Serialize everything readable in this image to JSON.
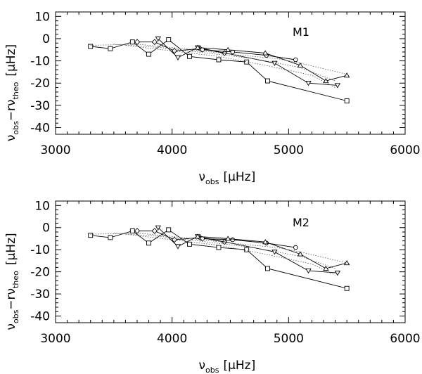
{
  "chart_data": [
    {
      "type": "line",
      "panel_label": "M1",
      "xlabel": "ν_obs [μHz]",
      "ylabel": "ν_obs − r ν_theo [μHz]",
      "xlim": [
        3000,
        6000
      ],
      "ylim": [
        -43,
        12
      ],
      "xticks": [
        3000,
        4000,
        5000,
        6000
      ],
      "yticks": [
        10,
        0,
        -10,
        -20,
        -30,
        -40
      ],
      "series": [
        {
          "name": "squares",
          "marker": "square",
          "style": "solid",
          "x": [
            3300,
            3470,
            3660,
            3800,
            3970,
            4150,
            4400,
            4640,
            4820,
            5500
          ],
          "y": [
            -3.5,
            -4.5,
            -1.5,
            -7,
            -0.5,
            -8,
            -9.5,
            -10.5,
            -19,
            -28
          ]
        },
        {
          "name": "diamonds",
          "marker": "diamond",
          "style": "solid",
          "x": [
            3700,
            3850,
            4020,
            4240,
            4450
          ],
          "y": [
            -1.5,
            -1.5,
            -5.5,
            -4.5,
            -6.5
          ]
        },
        {
          "name": "down-triangles",
          "marker": "triangle-down",
          "style": "solid",
          "x": [
            3880,
            4050,
            4220,
            4880,
            5170,
            5420
          ],
          "y": [
            0,
            -8.5,
            -4,
            -11,
            -20,
            -21
          ]
        },
        {
          "name": "circles",
          "marker": "circle",
          "style": "solid",
          "x": [
            4260,
            4520,
            4810,
            5060
          ],
          "y": [
            -5,
            -6,
            -7.5,
            -9.5
          ]
        },
        {
          "name": "up-triangles",
          "marker": "triangle-up",
          "style": "solid",
          "x": [
            4220,
            4480,
            4800,
            5100,
            5320,
            5500
          ],
          "y": [
            -4,
            -5,
            -6.5,
            -12,
            -19,
            -16.5
          ]
        },
        {
          "name": "model-dotted-1",
          "marker": "none",
          "style": "dotted",
          "x": [
            3300,
            3700,
            4100,
            4500,
            4900,
            5100,
            5500
          ],
          "y": [
            -3,
            -2.5,
            -4.5,
            -7,
            -9,
            -11,
            -16
          ]
        },
        {
          "name": "model-dotted-2",
          "marker": "none",
          "style": "dotted",
          "x": [
            3500,
            3900,
            4300,
            4700,
            5100,
            5400
          ],
          "y": [
            -2.5,
            -4,
            -6.5,
            -9,
            -13,
            -19
          ]
        },
        {
          "name": "model-dotted-3",
          "marker": "none",
          "style": "dotted",
          "x": [
            3600,
            4000,
            4400,
            4800,
            5200,
            5400
          ],
          "y": [
            -3,
            -5.5,
            -8,
            -12,
            -16.5,
            -22
          ]
        }
      ]
    },
    {
      "type": "line",
      "panel_label": "M2",
      "xlabel": "ν_obs [μHz]",
      "ylabel": "ν_obs − r ν_theo [μHz]",
      "xlim": [
        3000,
        6000
      ],
      "ylim": [
        -43,
        12
      ],
      "xticks": [
        3000,
        4000,
        5000,
        6000
      ],
      "yticks": [
        10,
        0,
        -10,
        -20,
        -30,
        -40
      ],
      "series": [
        {
          "name": "squares",
          "marker": "square",
          "style": "solid",
          "x": [
            3300,
            3470,
            3660,
            3800,
            3970,
            4150,
            4400,
            4640,
            4820,
            5500
          ],
          "y": [
            -3.5,
            -4.5,
            -1.5,
            -7,
            -1,
            -7.5,
            -9,
            -10,
            -18.5,
            -27.5
          ]
        },
        {
          "name": "diamonds",
          "marker": "diamond",
          "style": "solid",
          "x": [
            3700,
            3850,
            4020,
            4240,
            4450
          ],
          "y": [
            -1.5,
            -1.5,
            -5.5,
            -4.5,
            -6.5
          ]
        },
        {
          "name": "down-triangles",
          "marker": "triangle-down",
          "style": "solid",
          "x": [
            3880,
            4050,
            4220,
            4880,
            5170,
            5420
          ],
          "y": [
            0,
            -8.5,
            -4,
            -11,
            -19.5,
            -20.5
          ]
        },
        {
          "name": "circles",
          "marker": "circle",
          "style": "solid",
          "x": [
            4260,
            4520,
            4810,
            5060
          ],
          "y": [
            -5,
            -5.5,
            -7,
            -9
          ]
        },
        {
          "name": "up-triangles",
          "marker": "triangle-up",
          "style": "solid",
          "x": [
            4220,
            4480,
            4800,
            5100,
            5320,
            5500
          ],
          "y": [
            -4,
            -5,
            -6.5,
            -12,
            -18.5,
            -16
          ]
        },
        {
          "name": "model-dotted-1",
          "marker": "none",
          "style": "dotted",
          "x": [
            3300,
            3700,
            4100,
            4500,
            4900,
            5100,
            5500
          ],
          "y": [
            -3,
            -2.5,
            -4.5,
            -7,
            -9,
            -11,
            -16
          ]
        },
        {
          "name": "model-dotted-2",
          "marker": "none",
          "style": "dotted",
          "x": [
            3500,
            3900,
            4300,
            4700,
            5100,
            5400
          ],
          "y": [
            -2.5,
            -4,
            -6.5,
            -9,
            -13,
            -18.5
          ]
        },
        {
          "name": "model-dotted-3",
          "marker": "none",
          "style": "dotted",
          "x": [
            3600,
            4000,
            4400,
            4800,
            5200,
            5400
          ],
          "y": [
            -3,
            -5.5,
            -8,
            -12,
            -16.5,
            -21.5
          ]
        }
      ]
    }
  ]
}
